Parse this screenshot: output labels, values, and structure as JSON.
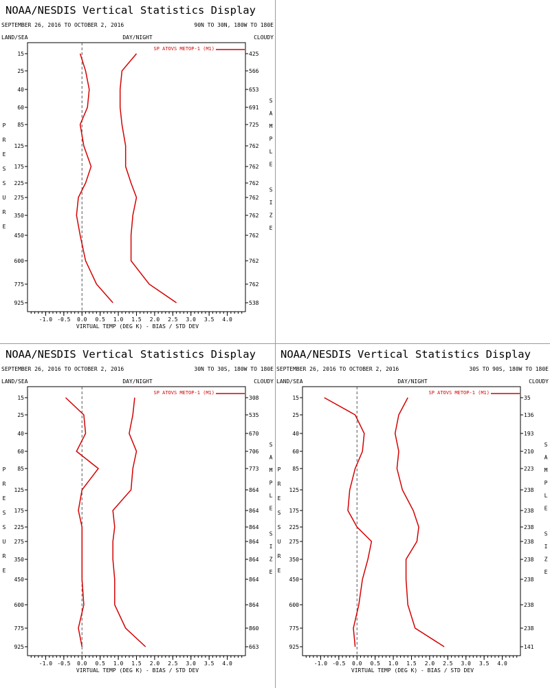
{
  "colors": {
    "series": "#d40000",
    "frame": "#000000",
    "zero_line": "#555555",
    "divider": "#9a9a9a"
  },
  "panels": [
    {
      "title": "NOAA/NESDIS Vertical Statistics Display",
      "date_range": "SEPTEMBER 26, 2016 TO OCTOBER 2, 2016",
      "region": "90N TO 30N, 180W TO 180E",
      "land_sea": "LAND/SEA",
      "day_night": "DAY/NIGHT",
      "cloudy": "CLOUDY",
      "ylabel_letters": [
        "P",
        "R",
        "E",
        "S",
        "S",
        "U",
        "R",
        "E"
      ],
      "right_label_letters": [
        "S",
        "A",
        "M",
        "P",
        "L",
        "E",
        "",
        "S",
        "I",
        "Z",
        "E"
      ],
      "xlabel": "VIRTUAL TEMP (DEG K) - BIAS / STD DEV",
      "legend": "SP ATOVS METOP-1 (M1)"
    },
    null,
    {
      "title": "NOAA/NESDIS Vertical Statistics Display",
      "date_range": "SEPTEMBER 26, 2016 TO OCTOBER 2, 2016",
      "region": "30N TO 30S, 180W TO 180E",
      "land_sea": "LAND/SEA",
      "day_night": "DAY/NIGHT",
      "cloudy": "CLOUDY",
      "ylabel_letters": [
        "P",
        "R",
        "E",
        "S",
        "S",
        "U",
        "R",
        "E"
      ],
      "right_label_letters": [
        "S",
        "A",
        "M",
        "P",
        "L",
        "E",
        "",
        "S",
        "I",
        "Z",
        "E"
      ],
      "xlabel": "VIRTUAL TEMP (DEG K) - BIAS / STD DEV",
      "legend": "SP ATOVS METOP-1 (M1)"
    },
    {
      "title": "NOAA/NESDIS Vertical Statistics Display",
      "date_range": "SEPTEMBER 26, 2016 TO OCTOBER 2, 2016",
      "region": "30S TO 90S, 180W TO 180E",
      "land_sea": "LAND/SEA",
      "day_night": "DAY/NIGHT",
      "cloudy": "CLOUDY",
      "ylabel_letters": [
        "P",
        "R",
        "E",
        "S",
        "S",
        "U",
        "R",
        "E"
      ],
      "right_label_letters": [
        "S",
        "A",
        "M",
        "P",
        "L",
        "E",
        "",
        "S",
        "I",
        "Z",
        "E"
      ],
      "xlabel": "VIRTUAL TEMP (DEG K) - BIAS / STD DEV",
      "legend": "SP ATOVS METOP-1 (M1)"
    }
  ],
  "chart_data": [
    {
      "type": "line",
      "pressure_levels": [
        15,
        25,
        40,
        60,
        85,
        125,
        175,
        225,
        275,
        350,
        450,
        600,
        775,
        925
      ],
      "xlim": [
        -1.5,
        4.5
      ],
      "xticks": [
        "-1.0",
        "-0.5",
        "0.0",
        "0.5",
        "1.0",
        "1.5",
        "2.0",
        "2.5",
        "3.0",
        "3.5",
        "4.0"
      ],
      "xtick_values": [
        -1.0,
        -0.5,
        0.0,
        0.5,
        1.0,
        1.5,
        2.0,
        2.5,
        3.0,
        3.5,
        4.0
      ],
      "series": [
        {
          "name": "SP ATOVS METOP-1 (M1)",
          "bias": [
            -0.05,
            0.1,
            0.2,
            0.15,
            -0.05,
            0.05,
            0.25,
            0.1,
            -0.1,
            -0.15,
            -0.05,
            0.1,
            0.4,
            0.85
          ],
          "std_dev": [
            1.5,
            1.1,
            1.05,
            1.05,
            1.1,
            1.2,
            1.2,
            1.35,
            1.5,
            1.4,
            1.35,
            1.35,
            1.85,
            2.6
          ]
        }
      ],
      "sample_size": [
        "425",
        "566",
        "653",
        "691",
        "725",
        "762",
        "762",
        "762",
        "762",
        "762",
        "762",
        "762",
        "762",
        "538"
      ]
    },
    {
      "type": "line",
      "pressure_levels": [
        15,
        25,
        40,
        60,
        85,
        125,
        175,
        225,
        275,
        350,
        450,
        600,
        775,
        925
      ],
      "xlim": [
        -1.5,
        4.5
      ],
      "xticks": [
        "-1.0",
        "-0.5",
        "0.0",
        "0.5",
        "1.0",
        "1.5",
        "2.0",
        "2.5",
        "3.0",
        "3.5",
        "4.0"
      ],
      "xtick_values": [
        -1.0,
        -0.5,
        0.0,
        0.5,
        1.0,
        1.5,
        2.0,
        2.5,
        3.0,
        3.5,
        4.0
      ],
      "series": [
        {
          "name": "SP ATOVS METOP-1 (M1)",
          "bias": [
            -0.45,
            0.05,
            0.1,
            -0.15,
            0.45,
            0.0,
            -0.1,
            0.0,
            0.0,
            0.0,
            0.0,
            0.05,
            -0.1,
            0.0
          ],
          "std_dev": [
            1.45,
            1.4,
            1.3,
            1.5,
            1.4,
            1.35,
            0.85,
            0.9,
            0.85,
            0.85,
            0.9,
            0.9,
            1.2,
            1.75
          ]
        }
      ],
      "sample_size": [
        "308",
        "535",
        "670",
        "706",
        "773",
        "864",
        "864",
        "864",
        "864",
        "864",
        "864",
        "864",
        "860",
        "663"
      ]
    },
    {
      "type": "line",
      "pressure_levels": [
        15,
        25,
        40,
        60,
        85,
        125,
        175,
        225,
        275,
        350,
        450,
        600,
        775,
        925
      ],
      "xlim": [
        -1.5,
        4.5
      ],
      "xticks": [
        "-1.0",
        "-0.5",
        "0.0",
        "0.5",
        "1.0",
        "1.5",
        "2.0",
        "2.5",
        "3.0",
        "3.5",
        "4.0"
      ],
      "xtick_values": [
        -1.0,
        -0.5,
        0.0,
        0.5,
        1.0,
        1.5,
        2.0,
        2.5,
        3.0,
        3.5,
        4.0
      ],
      "series": [
        {
          "name": "SP ATOVS METOP-1 (M1)",
          "bias": [
            -0.9,
            -0.05,
            0.2,
            0.15,
            -0.05,
            -0.2,
            -0.25,
            0.0,
            0.4,
            0.3,
            0.15,
            0.05,
            -0.1,
            -0.05
          ],
          "std_dev": [
            1.4,
            1.15,
            1.05,
            1.15,
            1.1,
            1.25,
            1.55,
            1.7,
            1.65,
            1.35,
            1.35,
            1.4,
            1.6,
            2.4
          ]
        }
      ],
      "sample_size": [
        "35",
        "136",
        "193",
        "210",
        "223",
        "238",
        "238",
        "238",
        "238",
        "238",
        "238",
        "238",
        "238",
        "141"
      ]
    }
  ]
}
